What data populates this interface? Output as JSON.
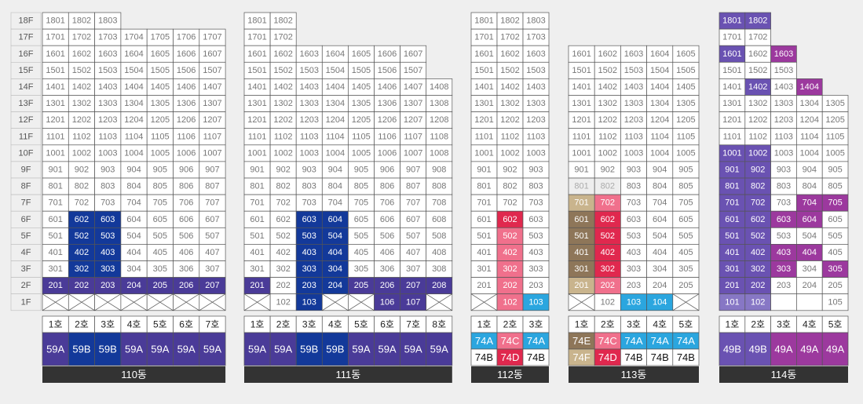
{
  "floors": [
    "18F",
    "17F",
    "16F",
    "15F",
    "14F",
    "13F",
    "12F",
    "11F",
    "10F",
    "9F",
    "8F",
    "7F",
    "6F",
    "5F",
    "4F",
    "3F",
    "2F",
    "1F"
  ],
  "palette": {
    ".": {
      "bg": "#ffffff",
      "fg": "#777777"
    },
    "e": {
      "bg": "#ffffff",
      "fg": "#777777"
    },
    "x": {
      "bg": "#ffffff",
      "fg": "#777777"
    },
    "p": {
      "bg": "#4a3b98",
      "fg": "#ffffff"
    },
    "b": {
      "bg": "#13399a",
      "fg": "#ffffff"
    },
    "r": {
      "bg": "#e0284e",
      "fg": "#ffffff"
    },
    "k": {
      "bg": "#f0708c",
      "fg": "#ffffff"
    },
    "c": {
      "bg": "#2ba6df",
      "fg": "#ffffff"
    },
    "g": {
      "bg": "#eeeeee",
      "fg": "#aaaaaa"
    },
    "t": {
      "bg": "#c9b48d",
      "fg": "#ffffff"
    },
    "n": {
      "bg": "#8e7659",
      "fg": "#ffffff"
    },
    "v": {
      "bg": "#6a52b2",
      "fg": "#ffffff"
    },
    "w": {
      "bg": "#8777c5",
      "fg": "#ffffff"
    },
    "m": {
      "bg": "#9c399e",
      "fg": "#ffffff"
    }
  },
  "buildings": [
    {
      "name": "110동",
      "units": [
        "1호",
        "2호",
        "3호",
        "4호",
        "5호",
        "6호",
        "7호"
      ],
      "types": [
        [
          "59A",
          "59B",
          "59B",
          "59A",
          "59A",
          "59A",
          "59A"
        ]
      ],
      "type_fills": [
        "pbbpppp"
      ],
      "cells": [
        [
          "1801",
          "1802",
          "1803",
          null,
          null,
          null,
          null
        ],
        [
          "1701",
          "1702",
          "1703",
          "1704",
          "1705",
          "1706",
          "1707"
        ],
        [
          "1601",
          "1602",
          "1603",
          "1604",
          "1605",
          "1606",
          "1607"
        ],
        [
          "1501",
          "1502",
          "1503",
          "1504",
          "1505",
          "1506",
          "1507"
        ],
        [
          "1401",
          "1402",
          "1403",
          "1404",
          "1405",
          "1406",
          "1407"
        ],
        [
          "1301",
          "1302",
          "1303",
          "1304",
          "1305",
          "1306",
          "1307"
        ],
        [
          "1201",
          "1202",
          "1203",
          "1204",
          "1205",
          "1206",
          "1207"
        ],
        [
          "1101",
          "1102",
          "1103",
          "1104",
          "1105",
          "1106",
          "1107"
        ],
        [
          "1001",
          "1002",
          "1003",
          "1004",
          "1005",
          "1006",
          "1007"
        ],
        [
          "901",
          "902",
          "903",
          "904",
          "905",
          "906",
          "907"
        ],
        [
          "801",
          "802",
          "803",
          "804",
          "805",
          "806",
          "807"
        ],
        [
          "701",
          "702",
          "703",
          "704",
          "705",
          "706",
          "707"
        ],
        [
          "601",
          "602",
          "603",
          "604",
          "605",
          "606",
          "607"
        ],
        [
          "501",
          "502",
          "503",
          "504",
          "505",
          "506",
          "507"
        ],
        [
          "401",
          "402",
          "403",
          "404",
          "405",
          "406",
          "407"
        ],
        [
          "301",
          "302",
          "303",
          "304",
          "305",
          "306",
          "307"
        ],
        [
          "201",
          "202",
          "203",
          "204",
          "205",
          "206",
          "207"
        ],
        [
          null,
          null,
          null,
          null,
          null,
          null,
          null
        ]
      ],
      "fills": [
        "...----",
        ".......",
        ".......",
        ".......",
        ".......",
        ".......",
        ".......",
        ".......",
        ".......",
        ".......",
        ".......",
        ".......",
        ".bb....",
        ".bb....",
        ".bb....",
        ".bb....",
        "ppppppp",
        "xxxxxxx"
      ]
    },
    {
      "name": "111동",
      "units": [
        "1호",
        "2호",
        "3호",
        "4호",
        "5호",
        "6호",
        "7호",
        "8호"
      ],
      "types": [
        [
          "59A",
          "59A",
          "59B",
          "59B",
          "59A",
          "59A",
          "59A",
          "59A"
        ]
      ],
      "type_fills": [
        "ppbbpppp"
      ],
      "cells": [
        [
          "1801",
          "1802",
          null,
          null,
          null,
          null,
          null,
          null
        ],
        [
          "1701",
          "1702",
          null,
          null,
          null,
          null,
          null,
          null
        ],
        [
          "1601",
          "1602",
          "1603",
          "1604",
          "1605",
          "1606",
          "1607",
          null
        ],
        [
          "1501",
          "1502",
          "1503",
          "1504",
          "1505",
          "1506",
          "1507",
          null
        ],
        [
          "1401",
          "1402",
          "1403",
          "1404",
          "1405",
          "1406",
          "1407",
          "1408"
        ],
        [
          "1301",
          "1302",
          "1303",
          "1304",
          "1305",
          "1306",
          "1307",
          "1308"
        ],
        [
          "1201",
          "1202",
          "1203",
          "1204",
          "1205",
          "1206",
          "1207",
          "1208"
        ],
        [
          "1101",
          "1102",
          "1103",
          "1104",
          "1105",
          "1106",
          "1107",
          "1108"
        ],
        [
          "1001",
          "1002",
          "1003",
          "1004",
          "1005",
          "1006",
          "1007",
          "1008"
        ],
        [
          "901",
          "902",
          "903",
          "904",
          "905",
          "906",
          "907",
          "908"
        ],
        [
          "801",
          "802",
          "803",
          "804",
          "805",
          "806",
          "807",
          "808"
        ],
        [
          "701",
          "702",
          "703",
          "704",
          "705",
          "706",
          "707",
          "708"
        ],
        [
          "601",
          "602",
          "603",
          "604",
          "605",
          "606",
          "607",
          "608"
        ],
        [
          "501",
          "502",
          "503",
          "504",
          "505",
          "506",
          "507",
          "508"
        ],
        [
          "401",
          "402",
          "403",
          "404",
          "405",
          "406",
          "407",
          "408"
        ],
        [
          "301",
          "302",
          "303",
          "304",
          "305",
          "306",
          "307",
          "308"
        ],
        [
          "201",
          "202",
          "203",
          "204",
          "205",
          "206",
          "207",
          "208"
        ],
        [
          null,
          "102",
          "103",
          null,
          null,
          "106",
          "107",
          null
        ]
      ],
      "fills": [
        "..------",
        "..------",
        ".......-",
        ".......-",
        "........",
        "........",
        "........",
        "........",
        "........",
        "........",
        "........",
        "........",
        "..bb....",
        "..bb....",
        "..bb....",
        "..bb....",
        "p.bbpppp",
        "x.bxxppx"
      ]
    },
    {
      "name": "112동",
      "units": [
        "1호",
        "2호",
        "3호"
      ],
      "types": [
        [
          "74A",
          "74C",
          "74A"
        ],
        [
          "74B",
          "74D",
          "74B"
        ]
      ],
      "type_fills": [
        "ckc",
        ".r."
      ],
      "cells": [
        [
          "1801",
          "1802",
          "1803"
        ],
        [
          "1701",
          "1702",
          "1703"
        ],
        [
          "1601",
          "1602",
          "1603"
        ],
        [
          "1501",
          "1502",
          "1503"
        ],
        [
          "1401",
          "1402",
          "1403"
        ],
        [
          "1301",
          "1302",
          "1303"
        ],
        [
          "1201",
          "1202",
          "1203"
        ],
        [
          "1101",
          "1102",
          "1103"
        ],
        [
          "1001",
          "1002",
          "1003"
        ],
        [
          "901",
          "902",
          "903"
        ],
        [
          "801",
          "802",
          "803"
        ],
        [
          "701",
          "702",
          "703"
        ],
        [
          "601",
          "602",
          "603"
        ],
        [
          "501",
          "502",
          "503"
        ],
        [
          "401",
          "402",
          "403"
        ],
        [
          "301",
          "302",
          "303"
        ],
        [
          "201",
          "202",
          "203"
        ],
        [
          null,
          "102",
          "103"
        ]
      ],
      "fills": [
        "...",
        "...",
        "...",
        "...",
        "...",
        "...",
        "...",
        "...",
        "...",
        "...",
        "...",
        "...",
        ".r.",
        ".k.",
        ".k.",
        ".k.",
        ".k.",
        "xkc"
      ]
    },
    {
      "name": "113동",
      "units": [
        "1호",
        "2호",
        "3호",
        "4호",
        "5호"
      ],
      "types": [
        [
          "74E",
          "74C",
          "74A",
          "74A",
          "74A"
        ],
        [
          "74F",
          "74D",
          "74B",
          "74B",
          "74B"
        ]
      ],
      "type_fills": [
        "nkccc",
        "tr..."
      ],
      "cells": [
        [
          null,
          null,
          null,
          null,
          null
        ],
        [
          null,
          null,
          null,
          null,
          null
        ],
        [
          "1601",
          "1602",
          "1603",
          "1604",
          "1605"
        ],
        [
          "1501",
          "1502",
          "1503",
          "1504",
          "1505"
        ],
        [
          "1401",
          "1402",
          "1403",
          "1404",
          "1405"
        ],
        [
          "1301",
          "1302",
          "1303",
          "1304",
          "1305"
        ],
        [
          "1201",
          "1202",
          "1203",
          "1204",
          "1205"
        ],
        [
          "1101",
          "1102",
          "1103",
          "1104",
          "1105"
        ],
        [
          "1001",
          "1002",
          "1003",
          "1004",
          "1005"
        ],
        [
          "901",
          "902",
          "903",
          "904",
          "905"
        ],
        [
          "801",
          "802",
          "803",
          "804",
          "805"
        ],
        [
          "701",
          "702",
          "703",
          "704",
          "705"
        ],
        [
          "601",
          "602",
          "603",
          "604",
          "605"
        ],
        [
          "501",
          "502",
          "503",
          "504",
          "505"
        ],
        [
          "401",
          "402",
          "403",
          "404",
          "405"
        ],
        [
          "301",
          "302",
          "303",
          "304",
          "305"
        ],
        [
          "201",
          "202",
          "203",
          "204",
          "205"
        ],
        [
          null,
          "102",
          "103",
          "104",
          null
        ]
      ],
      "fills": [
        "-----",
        "-----",
        ".....",
        ".....",
        ".....",
        ".....",
        ".....",
        ".....",
        ".....",
        ".....",
        "gg...",
        "tk...",
        "nr...",
        "nr...",
        "nr...",
        "nr...",
        "tk...",
        "x.ccx"
      ]
    },
    {
      "name": "114동",
      "units": [
        "1호",
        "2호",
        "3호",
        "4호",
        "5호"
      ],
      "types": [
        [
          "49B",
          "49B",
          "49A",
          "49A",
          "49A"
        ]
      ],
      "type_fills": [
        "vvmmm"
      ],
      "cells": [
        [
          "1801",
          "1802",
          null,
          null,
          null
        ],
        [
          "1701",
          "1702",
          null,
          null,
          null
        ],
        [
          "1601",
          "1602",
          "1603",
          null,
          null
        ],
        [
          "1501",
          "1502",
          "1503",
          null,
          null
        ],
        [
          "1401",
          "1402",
          "1403",
          "1404",
          null
        ],
        [
          "1301",
          "1302",
          "1303",
          "1304",
          "1305"
        ],
        [
          "1201",
          "1202",
          "1203",
          "1204",
          "1205"
        ],
        [
          "1101",
          "1102",
          "1103",
          "1104",
          "1105"
        ],
        [
          "1001",
          "1002",
          "1003",
          "1004",
          "1005"
        ],
        [
          "901",
          "902",
          "903",
          "904",
          "905"
        ],
        [
          "801",
          "802",
          "803",
          "804",
          "805"
        ],
        [
          "701",
          "702",
          "703",
          "704",
          "705"
        ],
        [
          "601",
          "602",
          "603",
          "604",
          "605"
        ],
        [
          "501",
          "502",
          "503",
          "504",
          "505"
        ],
        [
          "401",
          "402",
          "403",
          "404",
          "405"
        ],
        [
          "301",
          "302",
          "303",
          "304",
          "305"
        ],
        [
          "201",
          "202",
          "203",
          "204",
          "205"
        ],
        [
          "101",
          "102",
          null,
          null,
          "105"
        ]
      ],
      "fills": [
        "vv---",
        "..---",
        "v.m--",
        "...--",
        ".v.m-",
        ".....",
        ".....",
        ".....",
        "vv...",
        "vv...",
        "vv...",
        "vv.mm",
        "vvmm.",
        "vv...",
        "vvmm.",
        "vvm.m",
        "vv...",
        "wwee."
      ]
    }
  ]
}
